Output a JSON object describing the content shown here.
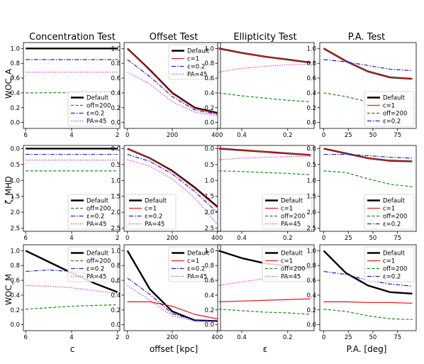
{
  "column_titles": [
    "Concentration Test",
    "Offset Test",
    "Ellipticity Test",
    "P.A. Test"
  ],
  "row_labels": [
    "WOC_A",
    "ζ_MHD",
    "WOC_M"
  ],
  "x_labels": [
    "c",
    "offset [kpc]",
    "ε",
    "P.A. [deg]"
  ],
  "colors": {
    "default": "#000000",
    "c1": "#e8231f",
    "off200": "#1a8a1a",
    "eps": "#1f1fd0",
    "pa": "#c020c0"
  },
  "chart_data": [
    {
      "type": "line",
      "row": 0,
      "col": 0,
      "title": "Concentration Test",
      "ylabel": "WOC_A",
      "xlabel": "",
      "xlim": [
        6.1,
        1.9
      ],
      "ylim": [
        -0.08,
        1.08
      ],
      "xticks": [
        6,
        4,
        2
      ],
      "yticks": [
        0.0,
        0.2,
        0.4,
        0.6,
        0.8,
        1.0
      ],
      "legend": "lower right",
      "series": [
        {
          "name": "Default",
          "style": "default",
          "x": [
            6,
            2
          ],
          "y": [
            1.0,
            1.0
          ]
        },
        {
          "name": "off=200",
          "style": "off200",
          "x": [
            6,
            2
          ],
          "y": [
            0.4,
            0.41
          ]
        },
        {
          "name": "ε=0.2",
          "style": "eps",
          "x": [
            6,
            2
          ],
          "y": [
            0.85,
            0.85
          ]
        },
        {
          "name": "PA=45",
          "style": "pa",
          "x": [
            6,
            2
          ],
          "y": [
            0.68,
            0.68
          ]
        }
      ]
    },
    {
      "type": "line",
      "row": 0,
      "col": 1,
      "title": "Offset Test",
      "ylabel": "",
      "xlabel": "",
      "xlim": [
        -15,
        415
      ],
      "ylim": [
        -0.08,
        1.08
      ],
      "xticks": [
        0,
        200,
        400
      ],
      "yticks": [
        0.0,
        0.2,
        0.4,
        0.6,
        0.8,
        1.0
      ],
      "legend": "upper right",
      "series": [
        {
          "name": "Default",
          "style": "default",
          "x": [
            0,
            100,
            200,
            300,
            400
          ],
          "y": [
            1.0,
            0.71,
            0.4,
            0.2,
            0.13
          ]
        },
        {
          "name": "c=1",
          "style": "c1",
          "x": [
            0,
            100,
            200,
            300,
            400
          ],
          "y": [
            1.0,
            0.7,
            0.39,
            0.19,
            0.12
          ]
        },
        {
          "name": "ε=0.2",
          "style": "eps",
          "x": [
            0,
            100,
            200,
            300,
            400
          ],
          "y": [
            0.85,
            0.62,
            0.35,
            0.17,
            0.11
          ]
        },
        {
          "name": "PA=45",
          "style": "pa",
          "x": [
            0,
            100,
            200,
            300,
            400
          ],
          "y": [
            0.68,
            0.52,
            0.28,
            0.14,
            0.09
          ]
        }
      ]
    },
    {
      "type": "line",
      "row": 0,
      "col": 2,
      "title": "Ellipticity Test",
      "ylabel": "",
      "xlabel": "",
      "xlim": [
        0.505,
        0.085
      ],
      "ylim": [
        -0.08,
        1.08
      ],
      "xticks": [
        0.4,
        0.2
      ],
      "yticks": [
        0.0,
        0.2,
        0.4,
        0.6,
        0.8,
        1.0
      ],
      "legend": "",
      "series": [
        {
          "name": "Default",
          "style": "default",
          "x": [
            0.5,
            0.4,
            0.3,
            0.2,
            0.1
          ],
          "y": [
            1.0,
            0.94,
            0.89,
            0.85,
            0.81
          ]
        },
        {
          "name": "c=1",
          "style": "c1",
          "x": [
            0.5,
            0.4,
            0.3,
            0.2,
            0.1
          ],
          "y": [
            1.0,
            0.94,
            0.89,
            0.85,
            0.81
          ]
        },
        {
          "name": "off=200",
          "style": "off200",
          "x": [
            0.5,
            0.4,
            0.3,
            0.2,
            0.1
          ],
          "y": [
            0.4,
            0.36,
            0.33,
            0.3,
            0.28
          ]
        },
        {
          "name": "PA=45",
          "style": "pa",
          "x": [
            0.5,
            0.4,
            0.3,
            0.2,
            0.1
          ],
          "y": [
            0.68,
            0.73,
            0.76,
            0.78,
            0.79
          ]
        }
      ]
    },
    {
      "type": "line",
      "row": 0,
      "col": 3,
      "title": "P.A. Test",
      "ylabel": "",
      "xlabel": "",
      "xlim": [
        -4,
        94
      ],
      "ylim": [
        -0.08,
        1.08
      ],
      "xticks": [
        0,
        25,
        50,
        75
      ],
      "yticks": [
        0.0,
        0.2,
        0.4,
        0.6,
        0.8,
        1.0
      ],
      "legend": "lower right",
      "series": [
        {
          "name": "Default",
          "style": "default",
          "x": [
            0,
            22.5,
            45,
            67.5,
            90
          ],
          "y": [
            1.0,
            0.83,
            0.69,
            0.61,
            0.59
          ]
        },
        {
          "name": "c=1",
          "style": "c1",
          "x": [
            0,
            22.5,
            45,
            67.5,
            90
          ],
          "y": [
            1.0,
            0.83,
            0.69,
            0.61,
            0.59
          ]
        },
        {
          "name": "off=200",
          "style": "off200",
          "x": [
            0,
            22.5,
            45,
            67.5,
            90
          ],
          "y": [
            0.4,
            0.35,
            0.28,
            0.2,
            0.18
          ]
        },
        {
          "name": "ε=0.2",
          "style": "eps",
          "x": [
            0,
            22.5,
            45,
            67.5,
            90
          ],
          "y": [
            0.85,
            0.82,
            0.77,
            0.72,
            0.7
          ]
        }
      ]
    },
    {
      "type": "line",
      "row": 1,
      "col": 0,
      "title": "",
      "ylabel": "ζ_MHD",
      "xlabel": "",
      "xlim": [
        6.1,
        1.9
      ],
      "ylim": [
        2.6,
        -0.1
      ],
      "xticks": [
        6,
        4,
        2
      ],
      "yticks": [
        0.0,
        0.5,
        1.0,
        1.5,
        2.0,
        2.5
      ],
      "legend": "lower right",
      "series": [
        {
          "name": "Default",
          "style": "default",
          "x": [
            6,
            2
          ],
          "y": [
            0.0,
            0.0
          ]
        },
        {
          "name": "off=200",
          "style": "off200",
          "x": [
            6,
            2
          ],
          "y": [
            0.7,
            0.7
          ]
        },
        {
          "name": "ε=0.2",
          "style": "eps",
          "x": [
            6,
            2
          ],
          "y": [
            0.18,
            0.18
          ]
        },
        {
          "name": "PA=45",
          "style": "pa",
          "x": [
            6,
            2
          ],
          "y": [
            0.36,
            0.36
          ]
        }
      ]
    },
    {
      "type": "line",
      "row": 1,
      "col": 1,
      "title": "",
      "ylabel": "",
      "xlabel": "",
      "xlim": [
        -15,
        415
      ],
      "ylim": [
        2.6,
        -0.1
      ],
      "xticks": [
        0,
        200,
        400
      ],
      "yticks": [
        0.0,
        0.5,
        1.0,
        1.5,
        2.0,
        2.5
      ],
      "legend": "lower left",
      "series": [
        {
          "name": "Default",
          "style": "default",
          "x": [
            0,
            100,
            200,
            300,
            400
          ],
          "y": [
            0.0,
            0.3,
            0.7,
            1.22,
            1.82
          ]
        },
        {
          "name": "c=1",
          "style": "c1",
          "x": [
            0,
            100,
            200,
            300,
            400
          ],
          "y": [
            0.0,
            0.3,
            0.72,
            1.25,
            1.85
          ]
        },
        {
          "name": "ε=0.2",
          "style": "eps",
          "x": [
            0,
            100,
            200,
            300,
            400
          ],
          "y": [
            0.18,
            0.4,
            0.8,
            1.35,
            2.0
          ]
        },
        {
          "name": "PA=45",
          "style": "pa",
          "x": [
            0,
            100,
            200,
            300,
            400
          ],
          "y": [
            0.35,
            0.55,
            0.95,
            1.55,
            2.38
          ]
        }
      ]
    },
    {
      "type": "line",
      "row": 1,
      "col": 2,
      "title": "",
      "ylabel": "",
      "xlabel": "",
      "xlim": [
        0.505,
        0.085
      ],
      "ylim": [
        2.6,
        -0.1
      ],
      "xticks": [
        0.4,
        0.2
      ],
      "yticks": [
        0.0,
        0.5,
        1.0,
        1.5,
        2.0,
        2.5
      ],
      "legend": "lower right",
      "series": [
        {
          "name": "Default",
          "style": "default",
          "x": [
            0.5,
            0.4,
            0.3,
            0.2,
            0.1
          ],
          "y": [
            0.0,
            0.05,
            0.1,
            0.15,
            0.2
          ]
        },
        {
          "name": "c=1",
          "style": "c1",
          "x": [
            0.5,
            0.4,
            0.3,
            0.2,
            0.1
          ],
          "y": [
            0.0,
            0.05,
            0.1,
            0.15,
            0.2
          ]
        },
        {
          "name": "off=200",
          "style": "off200",
          "x": [
            0.5,
            0.4,
            0.3,
            0.2,
            0.1
          ],
          "y": [
            0.7,
            0.72,
            0.75,
            0.78,
            0.82
          ]
        },
        {
          "name": "PA=45",
          "style": "pa",
          "x": [
            0.5,
            0.4,
            0.3,
            0.2,
            0.1
          ],
          "y": [
            0.35,
            0.3,
            0.27,
            0.25,
            0.24
          ]
        }
      ]
    },
    {
      "type": "line",
      "row": 1,
      "col": 3,
      "title": "",
      "ylabel": "",
      "xlabel": "",
      "xlim": [
        -4,
        94
      ],
      "ylim": [
        2.6,
        -0.1
      ],
      "xticks": [
        0,
        25,
        50,
        75
      ],
      "yticks": [
        0.0,
        0.5,
        1.0,
        1.5,
        2.0,
        2.5
      ],
      "legend": "lower right",
      "series": [
        {
          "name": "Default",
          "style": "default",
          "x": [
            0,
            22.5,
            45,
            67.5,
            90
          ],
          "y": [
            0.0,
            0.15,
            0.3,
            0.38,
            0.4
          ]
        },
        {
          "name": "c=1",
          "style": "c1",
          "x": [
            0,
            22.5,
            45,
            67.5,
            90
          ],
          "y": [
            0.0,
            0.15,
            0.3,
            0.38,
            0.4
          ]
        },
        {
          "name": "off=200",
          "style": "off200",
          "x": [
            0,
            22.5,
            45,
            67.5,
            90
          ],
          "y": [
            0.7,
            0.75,
            0.95,
            1.12,
            1.2
          ]
        },
        {
          "name": "ε=0.2",
          "style": "eps",
          "x": [
            0,
            22.5,
            45,
            67.5,
            90
          ],
          "y": [
            0.18,
            0.18,
            0.22,
            0.27,
            0.3
          ]
        }
      ]
    },
    {
      "type": "line",
      "row": 2,
      "col": 0,
      "title": "",
      "ylabel": "WOC_M",
      "xlabel": "c",
      "xlim": [
        6.1,
        1.9
      ],
      "ylim": [
        -0.08,
        1.08
      ],
      "xticks": [
        6,
        4,
        2
      ],
      "yticks": [
        0.0,
        0.2,
        0.4,
        0.6,
        0.8,
        1.0
      ],
      "legend": "upper right",
      "series": [
        {
          "name": "Default",
          "style": "default",
          "x": [
            6,
            5,
            4,
            3,
            2
          ],
          "y": [
            1.0,
            0.85,
            0.7,
            0.56,
            0.44
          ]
        },
        {
          "name": "off=200",
          "style": "off200",
          "x": [
            6,
            5,
            4,
            3,
            2
          ],
          "y": [
            0.21,
            0.23,
            0.25,
            0.26,
            0.27
          ]
        },
        {
          "name": "ε=0.2",
          "style": "eps",
          "x": [
            6,
            5,
            4,
            3,
            2
          ],
          "y": [
            0.72,
            0.74,
            0.72,
            0.67,
            0.57
          ]
        },
        {
          "name": "PA=45",
          "style": "pa",
          "x": [
            6,
            5,
            4,
            3,
            2
          ],
          "y": [
            0.53,
            0.52,
            0.5,
            0.46,
            0.42
          ]
        }
      ]
    },
    {
      "type": "line",
      "row": 2,
      "col": 1,
      "title": "",
      "ylabel": "",
      "xlabel": "offset [kpc]",
      "xlim": [
        -15,
        415
      ],
      "ylim": [
        -0.08,
        1.08
      ],
      "xticks": [
        0,
        200,
        400
      ],
      "yticks": [
        0.0,
        0.2,
        0.4,
        0.6,
        0.8,
        1.0
      ],
      "legend": "upper right",
      "series": [
        {
          "name": "Default",
          "style": "default",
          "x": [
            0,
            100,
            200,
            300,
            400
          ],
          "y": [
            1.0,
            0.48,
            0.18,
            0.06,
            0.05
          ]
        },
        {
          "name": "c=1",
          "style": "c1",
          "x": [
            0,
            100,
            200,
            300,
            400
          ],
          "y": [
            0.31,
            0.31,
            0.25,
            0.14,
            0.08
          ]
        },
        {
          "name": "ε=0.2",
          "style": "eps",
          "x": [
            0,
            100,
            200,
            300,
            400
          ],
          "y": [
            0.63,
            0.41,
            0.15,
            0.06,
            0.05
          ]
        },
        {
          "name": "PA=45",
          "style": "pa",
          "x": [
            0,
            100,
            200,
            300,
            400
          ],
          "y": [
            0.53,
            0.33,
            0.12,
            0.05,
            0.04
          ]
        }
      ]
    },
    {
      "type": "line",
      "row": 2,
      "col": 2,
      "title": "",
      "ylabel": "",
      "xlabel": "ε",
      "xlim": [
        0.505,
        0.085
      ],
      "ylim": [
        -0.08,
        1.08
      ],
      "xticks": [
        0.4,
        0.2
      ],
      "yticks": [
        0.0,
        0.2,
        0.4,
        0.6,
        0.8,
        1.0
      ],
      "legend": "upper right",
      "series": [
        {
          "name": "Default",
          "style": "default",
          "x": [
            0.5,
            0.4,
            0.3,
            0.2,
            0.1
          ],
          "y": [
            1.0,
            0.9,
            0.83,
            0.79,
            0.76
          ]
        },
        {
          "name": "c=1",
          "style": "c1",
          "x": [
            0.5,
            0.4,
            0.3,
            0.2,
            0.1
          ],
          "y": [
            0.31,
            0.32,
            0.33,
            0.34,
            0.35
          ]
        },
        {
          "name": "off=200",
          "style": "off200",
          "x": [
            0.5,
            0.4,
            0.3,
            0.2,
            0.1
          ],
          "y": [
            0.21,
            0.19,
            0.17,
            0.16,
            0.14
          ]
        },
        {
          "name": "PA=45",
          "style": "pa",
          "x": [
            0.5,
            0.4,
            0.3,
            0.2,
            0.1
          ],
          "y": [
            0.53,
            0.58,
            0.62,
            0.65,
            0.67
          ]
        }
      ]
    },
    {
      "type": "line",
      "row": 2,
      "col": 3,
      "title": "",
      "ylabel": "",
      "xlabel": "P.A. [deg]",
      "xlim": [
        -4,
        94
      ],
      "ylim": [
        -0.08,
        1.08
      ],
      "xticks": [
        0,
        25,
        50,
        75
      ],
      "yticks": [
        0.0,
        0.2,
        0.4,
        0.6,
        0.8,
        1.0
      ],
      "legend": "upper right",
      "series": [
        {
          "name": "Default",
          "style": "default",
          "x": [
            0,
            22.5,
            45,
            67.5,
            90
          ],
          "y": [
            1.0,
            0.7,
            0.53,
            0.44,
            0.42
          ]
        },
        {
          "name": "c=1",
          "style": "c1",
          "x": [
            0,
            22.5,
            45,
            67.5,
            90
          ],
          "y": [
            0.31,
            0.31,
            0.3,
            0.3,
            0.29
          ]
        },
        {
          "name": "off=200",
          "style": "off200",
          "x": [
            0,
            22.5,
            45,
            67.5,
            90
          ],
          "y": [
            0.21,
            0.18,
            0.12,
            0.08,
            0.07
          ]
        },
        {
          "name": "ε=0.2",
          "style": "eps",
          "x": [
            0,
            22.5,
            45,
            67.5,
            90
          ],
          "y": [
            0.72,
            0.68,
            0.6,
            0.55,
            0.52
          ]
        }
      ]
    }
  ]
}
